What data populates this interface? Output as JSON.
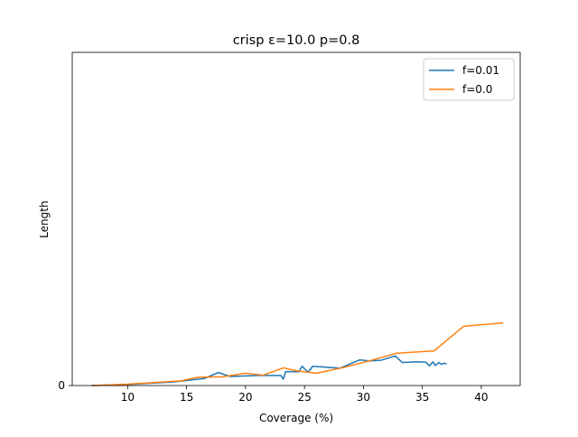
{
  "chart_data": {
    "type": "line",
    "title": "crisp ε=10.0 p=0.8",
    "xlabel": "Coverage (%)",
    "ylabel": "Length",
    "xlim": [
      5.3,
      43.3
    ],
    "ylim": [
      0,
      1
    ],
    "xticks": [
      10,
      15,
      20,
      25,
      30,
      35,
      40
    ],
    "xtick_labels": [
      "10",
      "15",
      "20",
      "25",
      "30",
      "35",
      "40"
    ],
    "yticks": [
      0
    ],
    "ytick_labels": [
      "0"
    ],
    "grid": false,
    "legend_position": "upper right",
    "series": [
      {
        "name": "f=0.01",
        "color": "#1f77b4",
        "points": [
          [
            7.0,
            0.0
          ],
          [
            9.5,
            0.002
          ],
          [
            12.0,
            0.007
          ],
          [
            14.0,
            0.011
          ],
          [
            16.5,
            0.021
          ],
          [
            17.7,
            0.039
          ],
          [
            18.7,
            0.027
          ],
          [
            21.0,
            0.03
          ],
          [
            23.0,
            0.03
          ],
          [
            23.2,
            0.019
          ],
          [
            23.4,
            0.042
          ],
          [
            24.5,
            0.041
          ],
          [
            24.8,
            0.058
          ],
          [
            25.3,
            0.04
          ],
          [
            25.7,
            0.058
          ],
          [
            28.0,
            0.052
          ],
          [
            29.7,
            0.077
          ],
          [
            30.5,
            0.074
          ],
          [
            31.5,
            0.076
          ],
          [
            32.7,
            0.089
          ],
          [
            33.3,
            0.069
          ],
          [
            34.5,
            0.071
          ],
          [
            35.3,
            0.07
          ],
          [
            35.6,
            0.059
          ],
          [
            35.9,
            0.071
          ],
          [
            36.1,
            0.06
          ],
          [
            36.4,
            0.069
          ],
          [
            36.6,
            0.064
          ],
          [
            36.9,
            0.067
          ],
          [
            37.0,
            0.065
          ]
        ]
      },
      {
        "name": "f=0.0",
        "color": "#ff7f0e",
        "points": [
          [
            7.0,
            0.0
          ],
          [
            10.0,
            0.004
          ],
          [
            14.5,
            0.014
          ],
          [
            16.0,
            0.025
          ],
          [
            18.0,
            0.026
          ],
          [
            20.0,
            0.037
          ],
          [
            21.5,
            0.031
          ],
          [
            23.2,
            0.053
          ],
          [
            24.5,
            0.043
          ],
          [
            26.0,
            0.037
          ],
          [
            28.3,
            0.054
          ],
          [
            30.5,
            0.074
          ],
          [
            32.8,
            0.097
          ],
          [
            36.0,
            0.104
          ],
          [
            38.5,
            0.178
          ],
          [
            41.8,
            0.188
          ]
        ]
      }
    ]
  }
}
